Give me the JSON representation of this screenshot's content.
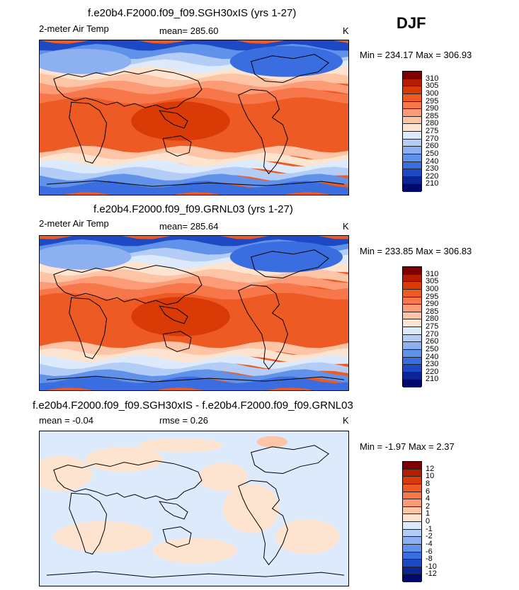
{
  "season": "DJF",
  "panels": [
    {
      "title": "f.e20b4.F2000.f09_f09.SGH30xIS (yrs 1-27)",
      "variable": "2-meter Air Temp",
      "stat1": "mean= 285.60",
      "stat2": "",
      "units": "K",
      "minmax": "Min = 234.17 Max = 306.93",
      "kind": "abs",
      "colorbar_labels": [
        "310",
        "305",
        "300",
        "295",
        "290",
        "285",
        "280",
        "275",
        "270",
        "260",
        "250",
        "240",
        "230",
        "220",
        "210"
      ]
    },
    {
      "title": "f.e20b4.F2000.f09_f09.GRNL03 (yrs 1-27)",
      "variable": "2-meter Air Temp",
      "stat1": "mean= 285.64",
      "stat2": "",
      "units": "K",
      "minmax": "Min = 233.85 Max = 306.83",
      "kind": "abs",
      "colorbar_labels": [
        "310",
        "305",
        "300",
        "295",
        "290",
        "285",
        "280",
        "275",
        "270",
        "260",
        "250",
        "240",
        "230",
        "220",
        "210"
      ]
    },
    {
      "title": "f.e20b4.F2000.f09_f09.SGH30xIS - f.e20b4.F2000.f09_f09.GRNL03",
      "variable": "mean =   -0.04",
      "stat1": "rmse =    0.26",
      "stat2": "",
      "units": "K",
      "minmax": "Min =  -1.97 Max =    2.37",
      "kind": "diff",
      "colorbar_labels": [
        "12",
        "10",
        "8",
        "6",
        "4",
        "2",
        "1",
        "0",
        "-1",
        "-2",
        "-4",
        "-6",
        "-8",
        "-10",
        "-12"
      ]
    }
  ],
  "colors": {
    "abs_scale": [
      "#7f0000",
      "#b51d00",
      "#d93a06",
      "#ee5a24",
      "#f7774a",
      "#fb9c76",
      "#fdc4a6",
      "#fde4d0",
      "#dceafb",
      "#b4cdf6",
      "#8cb0f0",
      "#6192ea",
      "#3a6ee0",
      "#1d4ac4",
      "#0a2596",
      "#000a6e"
    ],
    "diff_scale": [
      "#7f0000",
      "#b51d00",
      "#d93a06",
      "#ee5a24",
      "#f7774a",
      "#fb9c76",
      "#fdc4a6",
      "#fde4d0",
      "#dceafb",
      "#b4cdf6",
      "#8cb0f0",
      "#6192ea",
      "#3a6ee0",
      "#1d4ac4",
      "#0a2596",
      "#000a6e"
    ]
  }
}
